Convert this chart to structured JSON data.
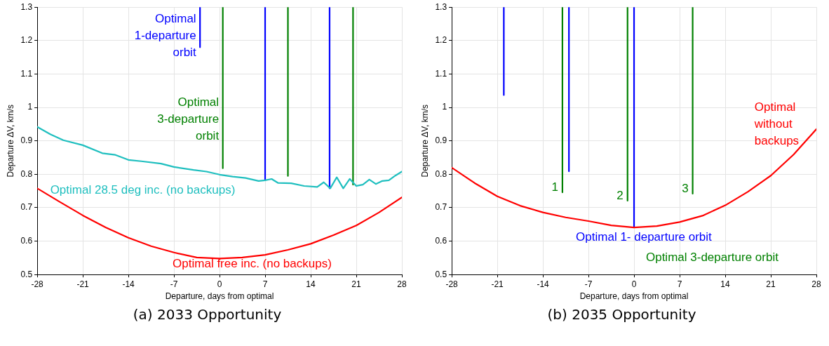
{
  "chart_data": [
    {
      "type": "line",
      "title": "(a) 2033 Opportunity",
      "xlabel": "Departure, days from optimal",
      "ylabel": "Departure ΔV, km/s",
      "xlim": [
        -28,
        28
      ],
      "xticks": [
        -28,
        -21,
        -14,
        -7,
        0,
        7,
        14,
        21,
        28
      ],
      "ylim": [
        0.5,
        1.3
      ],
      "yticks": [
        {
          "value": 0.5,
          "label": "0.5"
        },
        {
          "value": 0.6,
          "label": "0.6"
        },
        {
          "value": 0.7,
          "label": "0.7"
        },
        {
          "value": 0.8,
          "label": "0.8"
        },
        {
          "value": 0.9,
          "label": "0.9"
        },
        {
          "value": 1,
          "label": "1"
        },
        {
          "value": 1.1,
          "label": "1.1"
        },
        {
          "value": 1.2,
          "label": "1.2"
        },
        {
          "value": 1.3,
          "label": "1.3"
        }
      ],
      "grid": true,
      "legend": false,
      "marker": "none",
      "line_style": "solid",
      "series": [
        {
          "name": "Optimal 28.5 deg inc. (no backups)",
          "color": "#1fbfbf",
          "x": [
            -28,
            -26,
            -24,
            -21,
            -18,
            -16,
            -14,
            -12,
            -9,
            -7,
            -4,
            -2,
            0,
            2,
            4,
            6,
            7,
            8,
            9,
            11,
            13,
            15,
            16,
            17,
            18,
            19,
            20,
            21,
            22,
            23,
            24,
            25,
            26,
            27,
            28
          ],
          "values": [
            0.942,
            0.92,
            0.902,
            0.887,
            0.863,
            0.858,
            0.843,
            0.839,
            0.832,
            0.822,
            0.813,
            0.808,
            0.799,
            0.793,
            0.789,
            0.78,
            0.782,
            0.786,
            0.774,
            0.773,
            0.765,
            0.762,
            0.776,
            0.758,
            0.791,
            0.758,
            0.786,
            0.765,
            0.769,
            0.784,
            0.771,
            0.78,
            0.782,
            0.796,
            0.808
          ]
        },
        {
          "name": "Optimal free inc. (no backups)",
          "color": "#ff0000",
          "x": [
            -28,
            -24.5,
            -21,
            -17.5,
            -14,
            -10.5,
            -7,
            -3.5,
            0,
            3.5,
            7,
            10.5,
            14,
            17.5,
            21,
            24.5,
            28
          ],
          "values": [
            0.758,
            0.717,
            0.677,
            0.641,
            0.61,
            0.585,
            0.566,
            0.551,
            0.548,
            0.551,
            0.559,
            0.574,
            0.592,
            0.618,
            0.647,
            0.686,
            0.731
          ]
        },
        {
          "name": "Optimal 1-departure orbit",
          "color": "#0000ff",
          "x": [
            -3,
            -3,
            null,
            7,
            7,
            null,
            16.9,
            16.9
          ],
          "values": [
            1.18,
            1.3,
            null,
            0.782,
            1.3,
            null,
            0.758,
            1.3
          ]
        },
        {
          "name": "Optimal 3-departure orbit",
          "color": "#008000",
          "x": [
            0.5,
            0.5,
            null,
            10.5,
            10.5,
            null,
            20.5,
            20.5
          ],
          "values": [
            0.818,
            1.3,
            null,
            0.795,
            1.3,
            null,
            0.769,
            1.3
          ]
        }
      ]
    },
    {
      "type": "line",
      "title": "(b) 2035 Opportunity",
      "xlabel": "Departure, days from optimal",
      "ylabel": "Departure ΔV, km/s",
      "xlim": [
        -28,
        28
      ],
      "xticks": [
        -28,
        -21,
        -14,
        -7,
        0,
        7,
        14,
        21,
        28
      ],
      "ylim": [
        0.5,
        1.3
      ],
      "yticks": [
        {
          "value": 0.5,
          "label": "0.5"
        },
        {
          "value": 0.6,
          "label": "0.6"
        },
        {
          "value": 0.7,
          "label": "0.7"
        },
        {
          "value": 0.8,
          "label": "0.8"
        },
        {
          "value": 0.9,
          "label": "0.9"
        },
        {
          "value": 1,
          "label": "1"
        },
        {
          "value": 1.1,
          "label": "1.1"
        },
        {
          "value": 1.2,
          "label": "1.2"
        },
        {
          "value": 1.3,
          "label": "1.3"
        }
      ],
      "grid": true,
      "legend": false,
      "marker": "none",
      "line_style": "solid",
      "series": [
        {
          "name": "Optimal without backups",
          "color": "#ff0000",
          "x": [
            -28,
            -24.5,
            -21,
            -17.5,
            -14,
            -10.5,
            -7,
            -3.5,
            0,
            3.5,
            7,
            10.5,
            14,
            17.5,
            21,
            24.5,
            28
          ],
          "values": [
            0.82,
            0.774,
            0.734,
            0.706,
            0.686,
            0.671,
            0.66,
            0.647,
            0.641,
            0.645,
            0.657,
            0.676,
            0.707,
            0.748,
            0.796,
            0.859,
            0.935
          ]
        },
        {
          "name": "Optimal 1- departure orbit",
          "color": "#0000ff",
          "x": [
            -20,
            -20,
            null,
            -10,
            -10,
            null,
            0,
            0
          ],
          "values": [
            1.037,
            1.3,
            null,
            0.809,
            1.3,
            null,
            0.643,
            1.3
          ]
        },
        {
          "name": "Optimal 3-departure orbit",
          "color": "#008000",
          "x": [
            -11,
            -11,
            null,
            -1,
            -1,
            null,
            9,
            9
          ],
          "values": [
            0.746,
            1.3,
            null,
            0.721,
            1.3,
            null,
            0.742,
            1.3
          ]
        }
      ],
      "annotations": [
        {
          "text": "1",
          "x": -11,
          "y": 0.746
        },
        {
          "text": "2",
          "x": -1,
          "y": 0.721
        },
        {
          "text": "3",
          "x": 9,
          "y": 0.742
        }
      ]
    }
  ]
}
